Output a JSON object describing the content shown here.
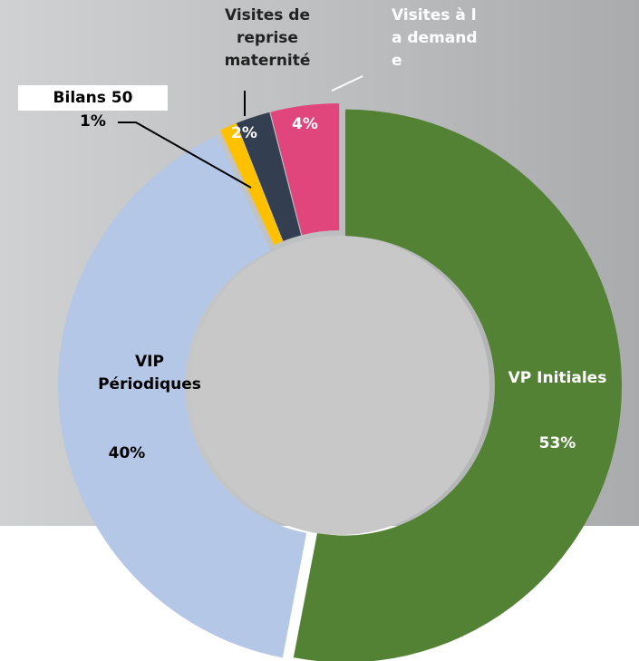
{
  "chart_data": {
    "type": "donut",
    "categories": [
      "VP Initiales",
      "VIP Périodiques",
      "Bilans 50",
      "Visites de reprise maternité",
      "Visites à la demande"
    ],
    "values": [
      53,
      40,
      1,
      2,
      4
    ],
    "value_labels": [
      "53%",
      "40%",
      "1%",
      "2%",
      "4%"
    ],
    "colors": [
      "#548235",
      "#b4c7e7",
      "#ffc000",
      "#333f50",
      "#e0457b"
    ]
  }
}
